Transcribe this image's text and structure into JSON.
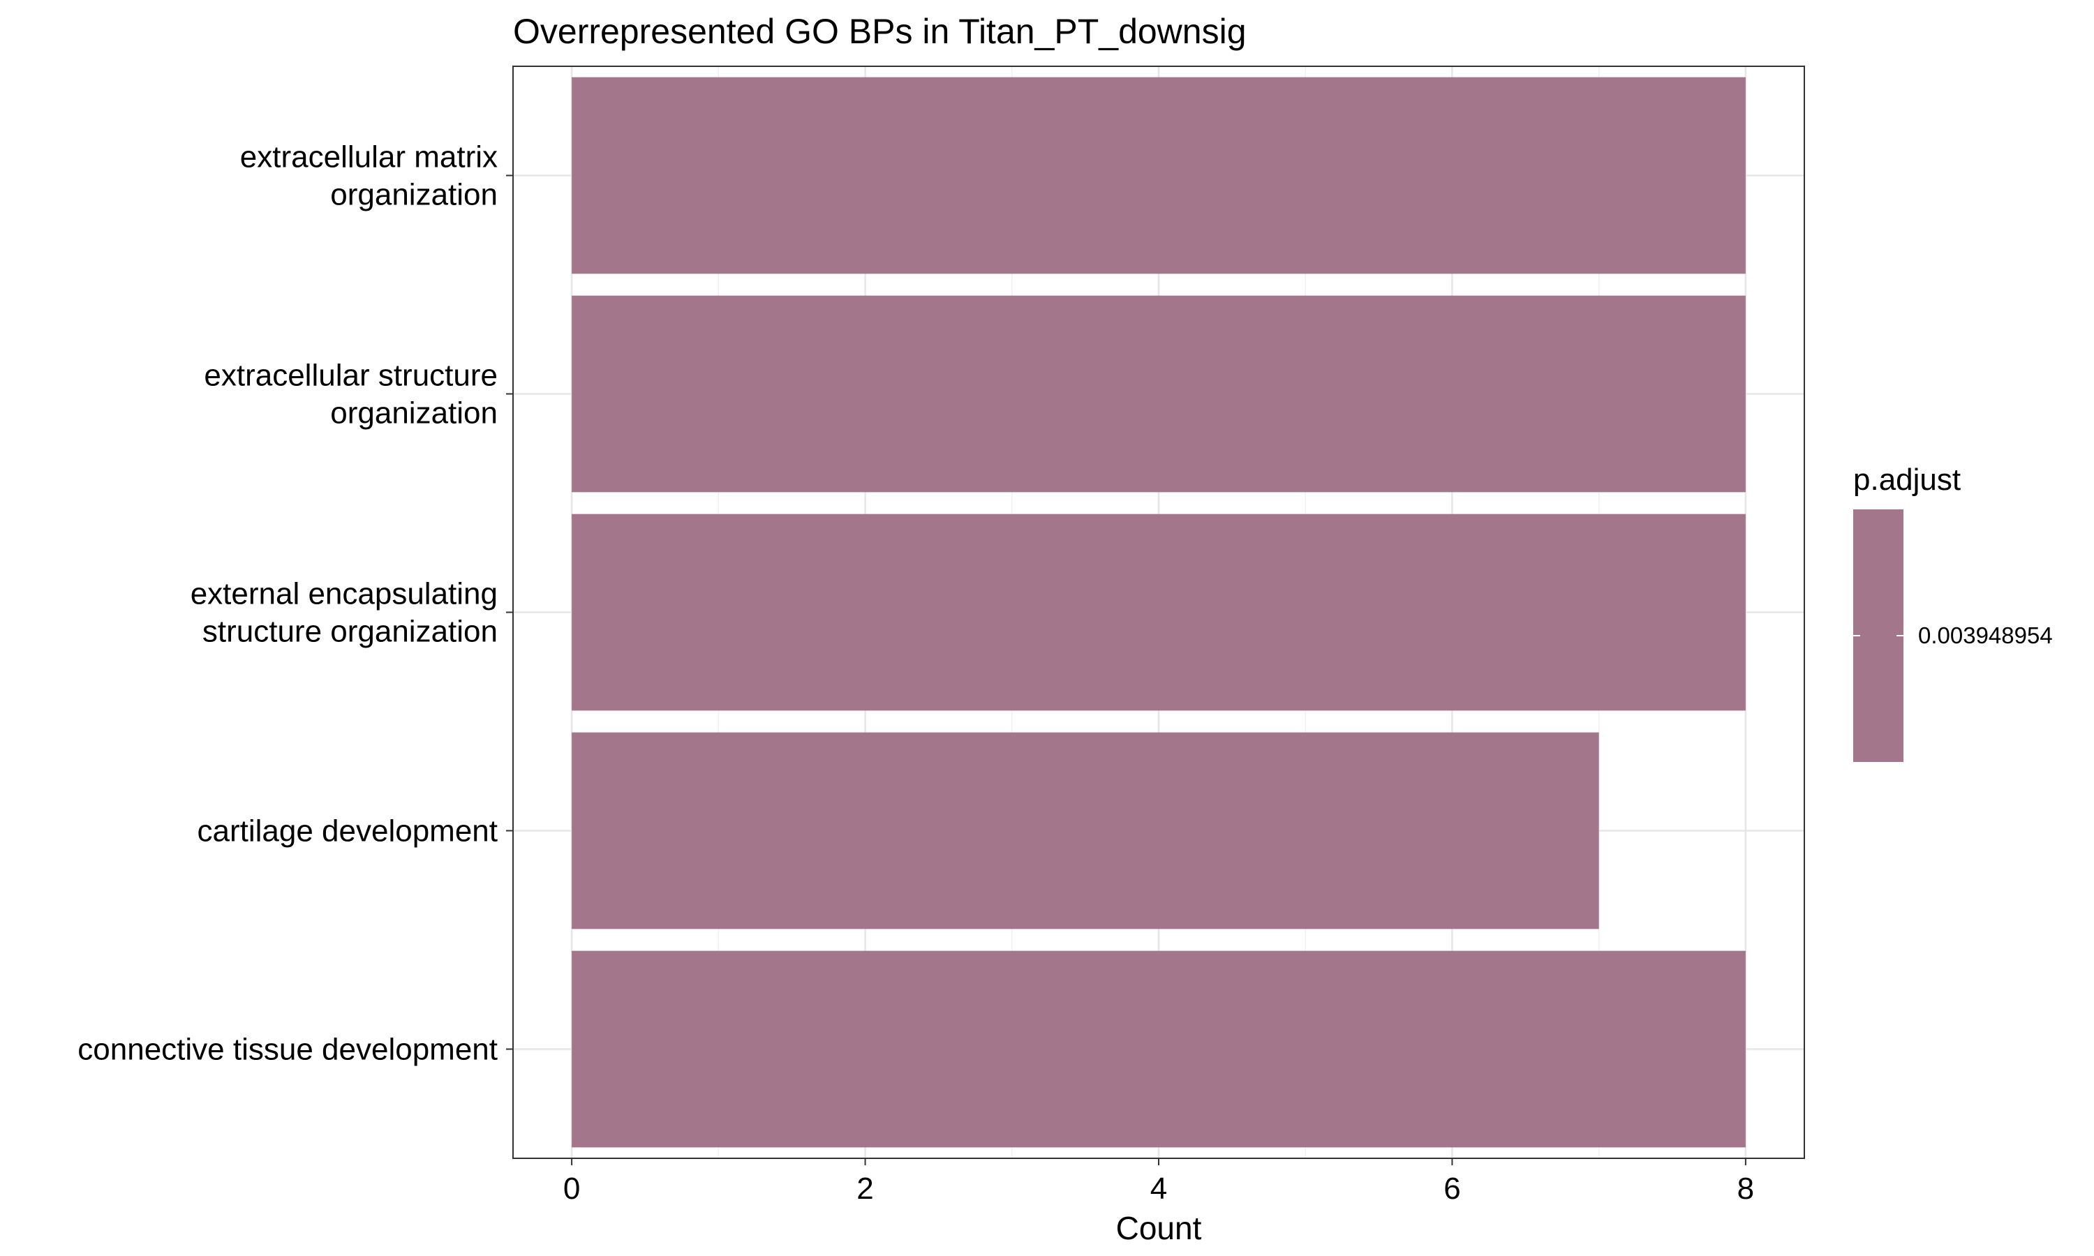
{
  "chart_data": {
    "type": "bar",
    "orientation": "horizontal",
    "title": "Overrepresented GO BPs in Titan_PT_downsig",
    "xlabel": "Count",
    "ylabel": "",
    "categories": [
      [
        "extracellular matrix",
        "organization"
      ],
      [
        "extracellular structure",
        "organization"
      ],
      [
        "external encapsulating",
        "structure organization"
      ],
      [
        "cartilage development"
      ],
      [
        "connective tissue development"
      ]
    ],
    "values": [
      8,
      8,
      8,
      7,
      8
    ],
    "xlim": [
      -0.4,
      8.4
    ],
    "xticks": [
      0,
      2,
      4,
      6,
      8
    ],
    "xtick_labels": [
      "0",
      "2",
      "4",
      "6",
      "8"
    ],
    "grid": true,
    "bar_color": "#A3768C",
    "legend": {
      "title": "p.adjust",
      "placement": "right",
      "label": "0.003948954",
      "color": "#A3768C"
    }
  }
}
